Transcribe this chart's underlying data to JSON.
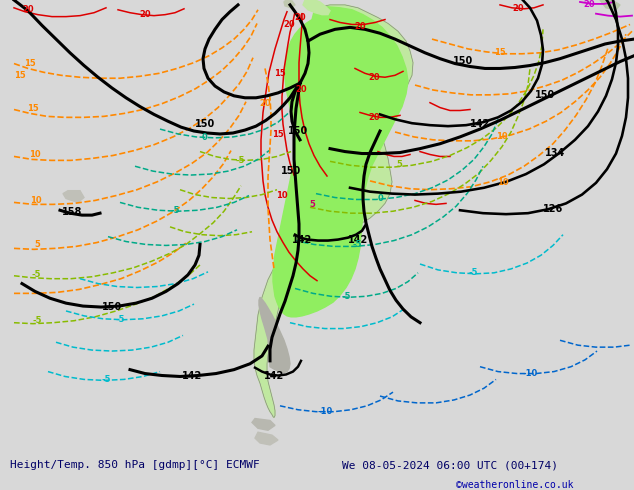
{
  "title_left": "Height/Temp. 850 hPa [gdmp][°C] ECMWF",
  "title_right": "We 08-05-2024 06:00 UTC (00+174)",
  "copyright": "©weatheronline.co.uk",
  "bg_color": "#d8d8d8",
  "fig_width": 6.34,
  "fig_height": 4.9,
  "dpi": 100,
  "bottom_bar_color": "#c8c8c8",
  "colors": {
    "black": "#000000",
    "red": "#e00000",
    "orange": "#ff8800",
    "yellow_green": "#88cc00",
    "lime": "#aadd00",
    "teal": "#00aa88",
    "cyan": "#00bbcc",
    "blue": "#0066cc",
    "magenta": "#cc00cc",
    "dark_red": "#880000"
  },
  "ocean_color": "#d4d4d4",
  "land_color": "#c8c4b8",
  "green_land_color": "#c0e8a0",
  "bright_green_color": "#90ee60"
}
